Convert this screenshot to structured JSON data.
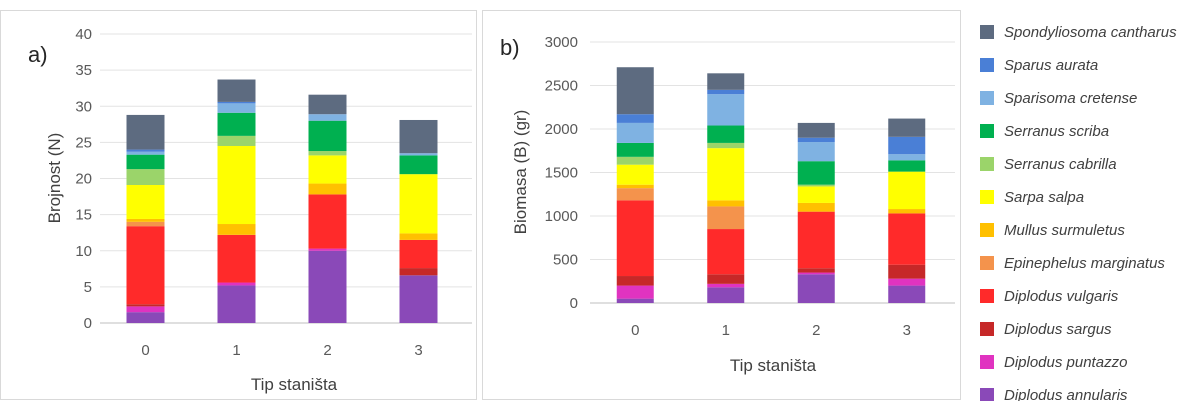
{
  "legend": [
    {
      "name": "Spondyliosoma cantharus",
      "color": "#5d6b80"
    },
    {
      "name": "Sparus aurata",
      "color": "#4a7fd6"
    },
    {
      "name": "Sparisoma cretense",
      "color": "#7fb2e2"
    },
    {
      "name": "Serranus scriba",
      "color": "#00b050"
    },
    {
      "name": "Serranus cabrilla",
      "color": "#9bd46a"
    },
    {
      "name": "Sarpa salpa",
      "color": "#ffff00"
    },
    {
      "name": "Mullus surmuletus",
      "color": "#ffc000"
    },
    {
      "name": "Epinephelus marginatus",
      "color": "#f4934c"
    },
    {
      "name": "Diplodus vulgaris",
      "color": "#ff2a2a"
    },
    {
      "name": "Diplodus sargus",
      "color": "#c62828"
    },
    {
      "name": "Diplodus puntazzo",
      "color": "#e033c0"
    },
    {
      "name": "Diplodus annularis",
      "color": "#8a49b8"
    }
  ],
  "chart_data": [
    {
      "type": "bar",
      "stacked": true,
      "panel_label": "a)",
      "xlabel": "Tip staništa",
      "ylabel": "Brojnost (N)",
      "categories": [
        "0",
        "1",
        "2",
        "3"
      ],
      "ylim": [
        0,
        40
      ],
      "yticks": [
        0,
        5,
        10,
        15,
        20,
        25,
        30,
        35,
        40
      ],
      "grid": true,
      "series": [
        {
          "name": "Diplodus annularis",
          "values": [
            1.5,
            5.2,
            10.0,
            6.6
          ]
        },
        {
          "name": "Diplodus puntazzo",
          "values": [
            0.8,
            0.4,
            0.3,
            0.0
          ]
        },
        {
          "name": "Diplodus sargus",
          "values": [
            0.3,
            0.0,
            0.0,
            1.0
          ]
        },
        {
          "name": "Diplodus vulgaris",
          "values": [
            10.8,
            6.6,
            7.5,
            3.9
          ]
        },
        {
          "name": "Epinephelus marginatus",
          "values": [
            0.6,
            0.0,
            0.0,
            0.0
          ]
        },
        {
          "name": "Mullus surmuletus",
          "values": [
            0.4,
            1.5,
            1.5,
            0.9
          ]
        },
        {
          "name": "Sarpa salpa",
          "values": [
            4.7,
            10.8,
            3.9,
            8.2
          ]
        },
        {
          "name": "Serranus cabrilla",
          "values": [
            2.2,
            1.4,
            0.6,
            0.0
          ]
        },
        {
          "name": "Serranus scriba",
          "values": [
            2.0,
            3.2,
            4.2,
            2.6
          ]
        },
        {
          "name": "Sparisoma cretense",
          "values": [
            0.4,
            1.3,
            0.9,
            0.3
          ]
        },
        {
          "name": "Sparus aurata",
          "values": [
            0.3,
            0.2,
            0.0,
            0.0
          ]
        },
        {
          "name": "Spondyliosoma cantharus",
          "values": [
            4.8,
            3.1,
            2.7,
            4.6
          ]
        }
      ]
    },
    {
      "type": "bar",
      "stacked": true,
      "panel_label": "b)",
      "xlabel": "Tip staništa",
      "ylabel": "Biomasa (B) (gr)",
      "categories": [
        "0",
        "1",
        "2",
        "3"
      ],
      "ylim": [
        0,
        3000
      ],
      "yticks": [
        0,
        500,
        1000,
        1500,
        2000,
        2500,
        3000
      ],
      "grid": true,
      "series": [
        {
          "name": "Diplodus annularis",
          "values": [
            50,
            180,
            330,
            200
          ]
        },
        {
          "name": "Diplodus puntazzo",
          "values": [
            150,
            40,
            20,
            80
          ]
        },
        {
          "name": "Diplodus sargus",
          "values": [
            110,
            110,
            50,
            160
          ]
        },
        {
          "name": "Diplodus vulgaris",
          "values": [
            870,
            520,
            650,
            590
          ]
        },
        {
          "name": "Epinephelus marginatus",
          "values": [
            140,
            260,
            0,
            0
          ]
        },
        {
          "name": "Mullus surmuletus",
          "values": [
            40,
            70,
            100,
            50
          ]
        },
        {
          "name": "Sarpa salpa",
          "values": [
            230,
            600,
            190,
            430
          ]
        },
        {
          "name": "Serranus cabrilla",
          "values": [
            90,
            60,
            20,
            0
          ]
        },
        {
          "name": "Serranus scriba",
          "values": [
            160,
            200,
            270,
            130
          ]
        },
        {
          "name": "Sparisoma cretense",
          "values": [
            230,
            360,
            220,
            70
          ]
        },
        {
          "name": "Sparus aurata",
          "values": [
            100,
            50,
            50,
            200
          ]
        },
        {
          "name": "Spondyliosoma cantharus",
          "values": [
            540,
            190,
            170,
            210
          ]
        }
      ]
    }
  ]
}
